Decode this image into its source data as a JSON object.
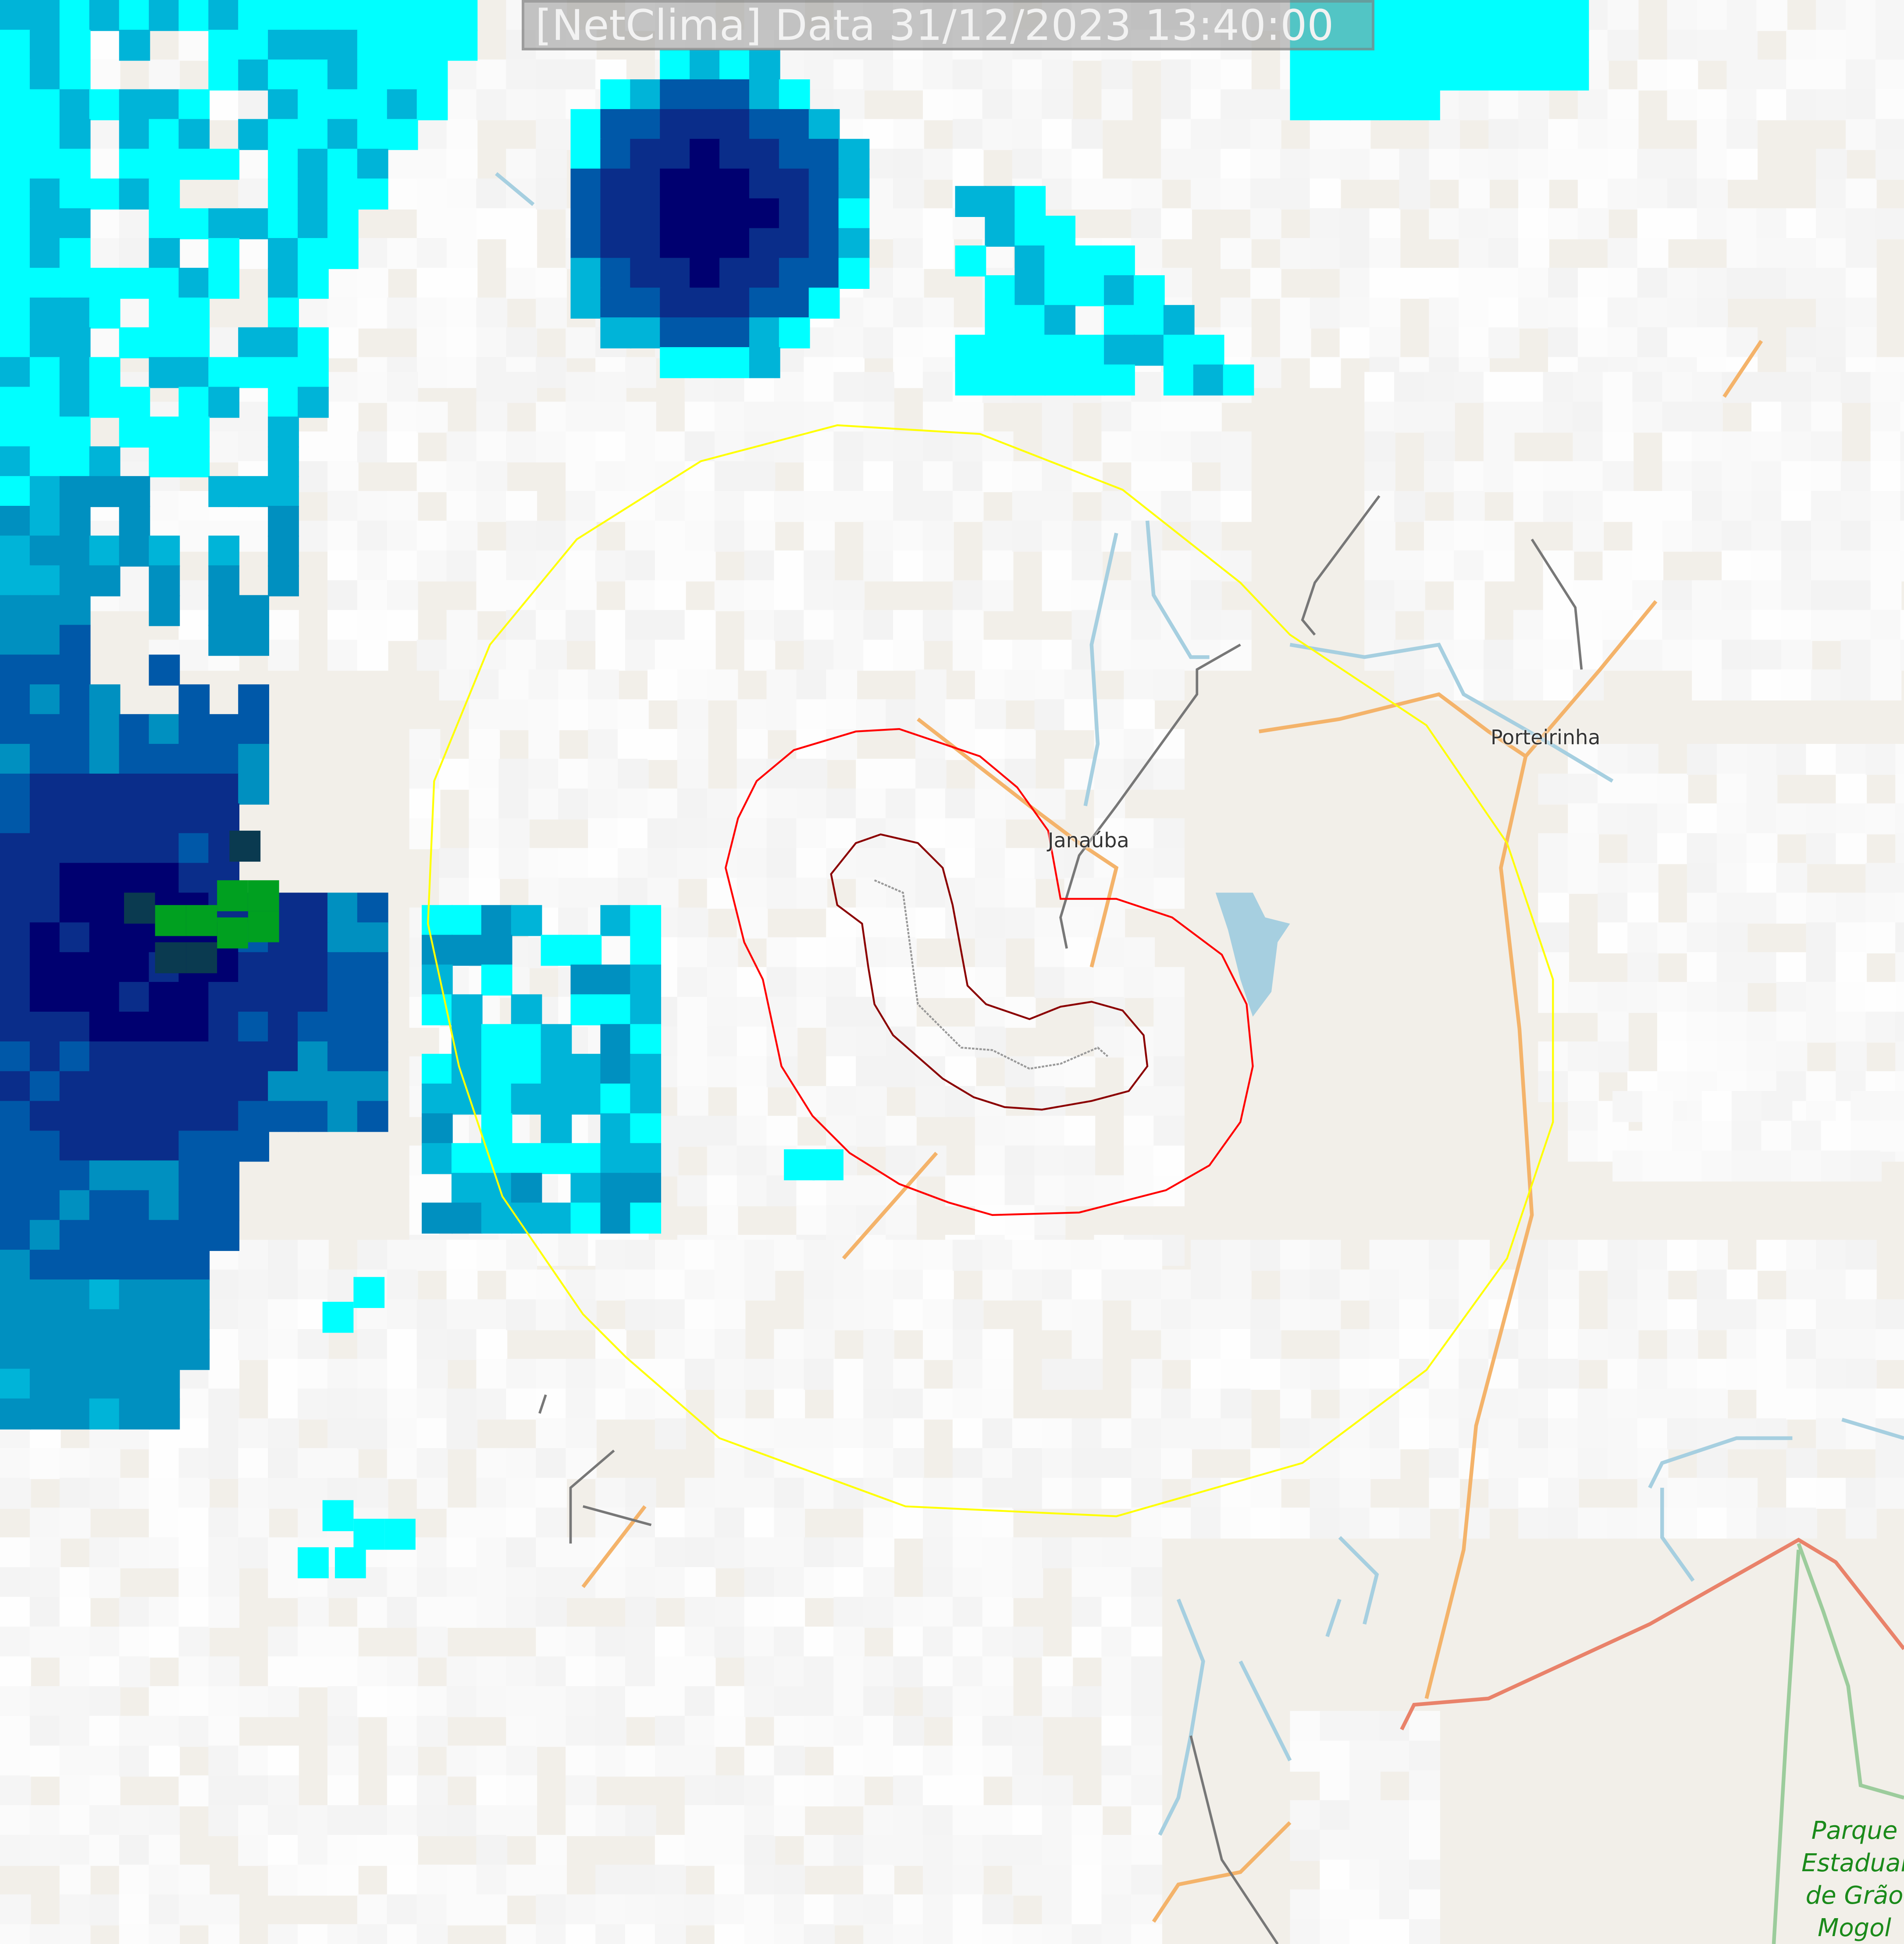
{
  "title": "[NetClima] Data 31/12/2023 13:40:00",
  "places": {
    "janauba": "Janaúba",
    "porteirinha": "Porteirinha",
    "park": [
      "Parque",
      "Estadual",
      "de Grão",
      "Mogol"
    ]
  },
  "overlays": {
    "outer_ring_color": "#ffff00",
    "middle_ring_color": "#ff0000",
    "inner_ring_color": "#8b0000",
    "track_color": "#999999"
  },
  "radar_palette": [
    "#00ffff",
    "#00b4d8",
    "#0090c0",
    "#0058a8",
    "#0a2d8a",
    "#000070",
    "#0a3a50",
    "#00a020"
  ]
}
